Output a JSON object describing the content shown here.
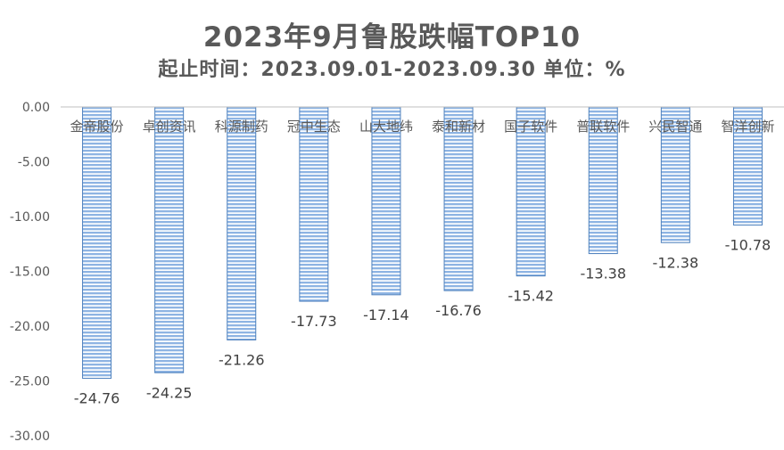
{
  "chart_data": {
    "type": "bar",
    "title": "2023年9月鲁股跌幅TOP10",
    "subtitle": "起止时间：2023.09.01-2023.09.30 单位：%",
    "categories": [
      "金帝股份",
      "卓创资讯",
      "科源制药",
      "冠中生态",
      "山大地纬",
      "泰和新材",
      "国子软件",
      "普联软件",
      "兴民智通",
      "智洋创新"
    ],
    "values": [
      -24.76,
      -24.25,
      -21.26,
      -17.73,
      -17.14,
      -16.76,
      -15.42,
      -13.38,
      -12.38,
      -10.78
    ],
    "data_labels": [
      "-24.76",
      "-24.25",
      "-21.26",
      "-17.73",
      "-17.14",
      "-16.76",
      "-15.42",
      "-13.38",
      "-12.38",
      "-10.78"
    ],
    "y_ticks": [
      "0.00",
      "-5.00",
      "-10.00",
      "-15.00",
      "-20.00",
      "-25.00",
      "-30.00"
    ],
    "ylim": [
      -30,
      0
    ],
    "grid": false,
    "legend": "none",
    "bar_color": "#8EB4E3",
    "bar_stripe_color": "#FFFFFF",
    "bar_edge_color": "#4F81BD",
    "text_color": "#595959"
  }
}
